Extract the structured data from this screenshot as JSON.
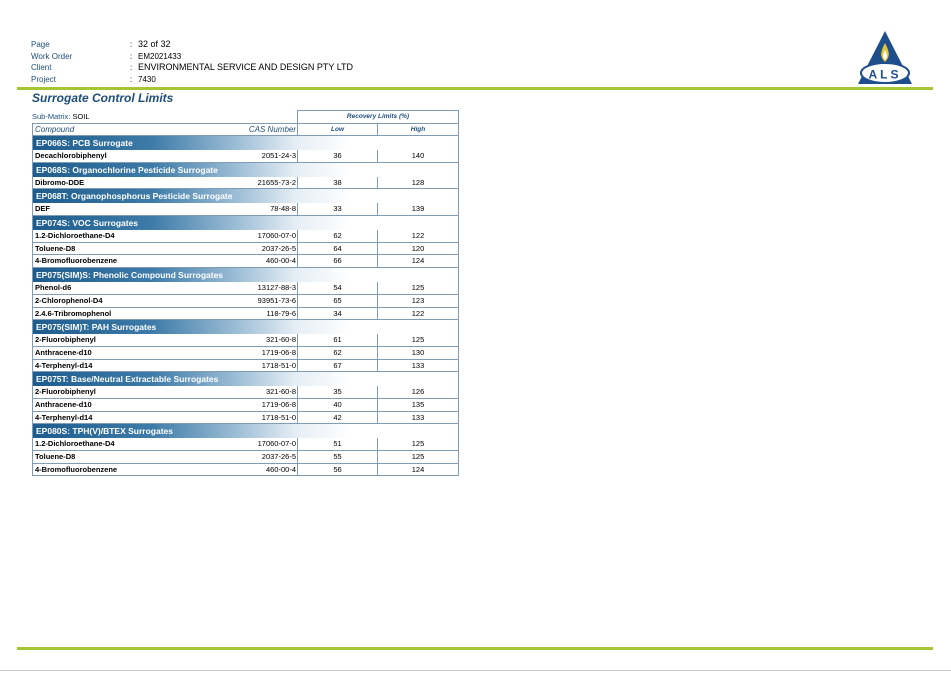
{
  "header": {
    "fields": [
      {
        "label": "Page",
        "colon": ":",
        "value": "32 of 32"
      },
      {
        "label": "Work Order",
        "colon": ":",
        "value": "EM2021433"
      },
      {
        "label": "Client",
        "colon": ":",
        "value": "ENVIRONMENTAL SERVICE AND DESIGN PTY LTD"
      },
      {
        "label": "Project",
        "colon": ":",
        "value": "7430"
      }
    ],
    "logo": {
      "text": "ALS",
      "icon": "als-flame-logo-icon",
      "colors": {
        "triangle": "#1f4e8c",
        "flame": "#e8c23a",
        "ring": "#1f4e8c"
      }
    }
  },
  "accent_color": "#a5c533",
  "title": "Surrogate Control Limits",
  "table": {
    "sub_matrix_label": "Sub-Matrix:",
    "sub_matrix_value": "SOIL",
    "recovery_header": "Recovery Limits (%)",
    "columns": {
      "compound": "Compound",
      "cas": "CAS Number",
      "low": "Low",
      "high": "High"
    },
    "groups": [
      {
        "title": "EP066S: PCB Surrogate",
        "rows": [
          {
            "compound": "Decachlorobiphenyl",
            "cas": "2051-24-3",
            "low": "36",
            "high": "140"
          }
        ]
      },
      {
        "title": "EP068S: Organochlorine Pesticide Surrogate",
        "rows": [
          {
            "compound": "Dibromo-DDE",
            "cas": "21655-73-2",
            "low": "38",
            "high": "128"
          }
        ]
      },
      {
        "title": "EP068T: Organophosphorus Pesticide Surrogate",
        "rows": [
          {
            "compound": "DEF",
            "cas": "78-48-8",
            "low": "33",
            "high": "139"
          }
        ]
      },
      {
        "title": "EP074S: VOC Surrogates",
        "rows": [
          {
            "compound": "1.2-Dichloroethane-D4",
            "cas": "17060-07-0",
            "low": "62",
            "high": "122"
          },
          {
            "compound": "Toluene-D8",
            "cas": "2037-26-5",
            "low": "64",
            "high": "120"
          },
          {
            "compound": "4-Bromofluorobenzene",
            "cas": "460-00-4",
            "low": "66",
            "high": "124"
          }
        ]
      },
      {
        "title": "EP075(SIM)S: Phenolic Compound Surrogates",
        "rows": [
          {
            "compound": "Phenol-d6",
            "cas": "13127-88-3",
            "low": "54",
            "high": "125"
          },
          {
            "compound": "2-Chlorophenol-D4",
            "cas": "93951-73-6",
            "low": "65",
            "high": "123"
          },
          {
            "compound": "2.4.6-Tribromophenol",
            "cas": "118-79-6",
            "low": "34",
            "high": "122"
          }
        ]
      },
      {
        "title": "EP075(SIM)T: PAH Surrogates",
        "rows": [
          {
            "compound": "2-Fluorobiphenyl",
            "cas": "321-60-8",
            "low": "61",
            "high": "125"
          },
          {
            "compound": "Anthracene-d10",
            "cas": "1719-06-8",
            "low": "62",
            "high": "130"
          },
          {
            "compound": "4-Terphenyl-d14",
            "cas": "1718-51-0",
            "low": "67",
            "high": "133"
          }
        ]
      },
      {
        "title": "EP075T: Base/Neutral Extractable Surrogates",
        "rows": [
          {
            "compound": "2-Fluorobiphenyl",
            "cas": "321-60-8",
            "low": "35",
            "high": "126"
          },
          {
            "compound": "Anthracene-d10",
            "cas": "1719-06-8",
            "low": "40",
            "high": "135"
          },
          {
            "compound": "4-Terphenyl-d14",
            "cas": "1718-51-0",
            "low": "42",
            "high": "133"
          }
        ]
      },
      {
        "title": "EP080S: TPH(V)/BTEX Surrogates",
        "rows": [
          {
            "compound": "1.2-Dichloroethane-D4",
            "cas": "17060-07-0",
            "low": "51",
            "high": "125"
          },
          {
            "compound": "Toluene-D8",
            "cas": "2037-26-5",
            "low": "55",
            "high": "125"
          },
          {
            "compound": "4-Bromofluorobenzene",
            "cas": "460-00-4",
            "low": "56",
            "high": "124"
          }
        ]
      }
    ]
  }
}
